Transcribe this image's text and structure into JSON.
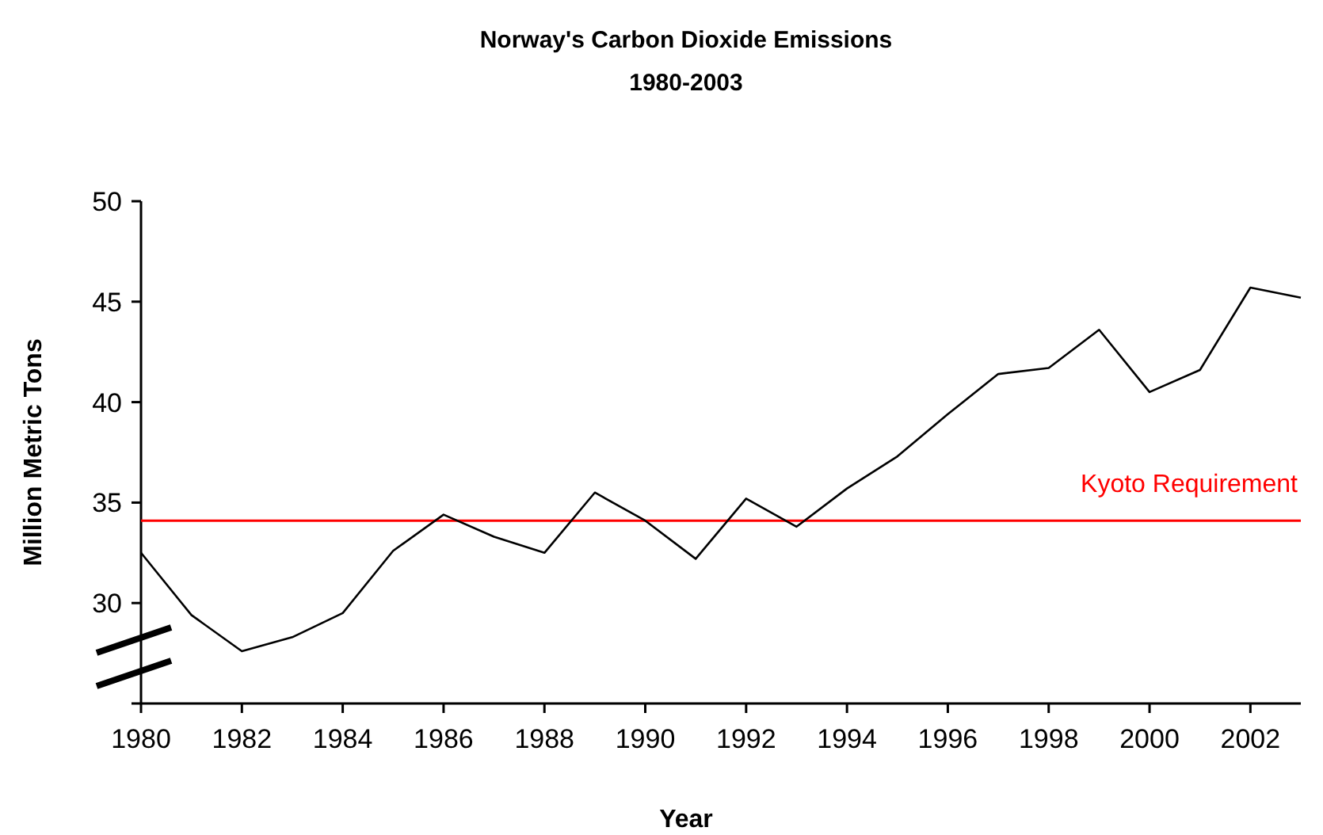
{
  "chart_data": {
    "type": "line",
    "title": "Norway's Carbon Dioxide Emissions",
    "subtitle": "1980-2003",
    "xlabel": "Year",
    "ylabel": "Million Metric Tons",
    "x": [
      1980,
      1981,
      1982,
      1983,
      1984,
      1985,
      1986,
      1987,
      1988,
      1989,
      1990,
      1991,
      1992,
      1993,
      1994,
      1995,
      1996,
      1997,
      1998,
      1999,
      2000,
      2001,
      2002,
      2003
    ],
    "series": [
      {
        "color": "#000000",
        "values": [
          32.5,
          29.4,
          27.6,
          28.3,
          29.5,
          32.6,
          34.4,
          33.3,
          32.5,
          35.5,
          34.1,
          32.2,
          35.2,
          33.8,
          35.7,
          37.3,
          39.4,
          41.4,
          41.7,
          43.6,
          40.5,
          41.6,
          45.7,
          45.2
        ]
      }
    ],
    "xlim": [
      1980,
      2003
    ],
    "xticks": [
      1980,
      1982,
      1984,
      1986,
      1988,
      1990,
      1992,
      1994,
      1996,
      1998,
      2000,
      2002
    ],
    "ylim": [
      25,
      50
    ],
    "yticks": [
      {
        "value": 25,
        "label": null
      },
      30,
      35,
      40,
      45,
      50
    ],
    "ref_lines": [
      {
        "axis": "y",
        "value": 34.1,
        "label": "Kyoto Requirement",
        "color": "#ff0000"
      }
    ],
    "grid": false,
    "marker": "none",
    "line_style": "solid"
  }
}
